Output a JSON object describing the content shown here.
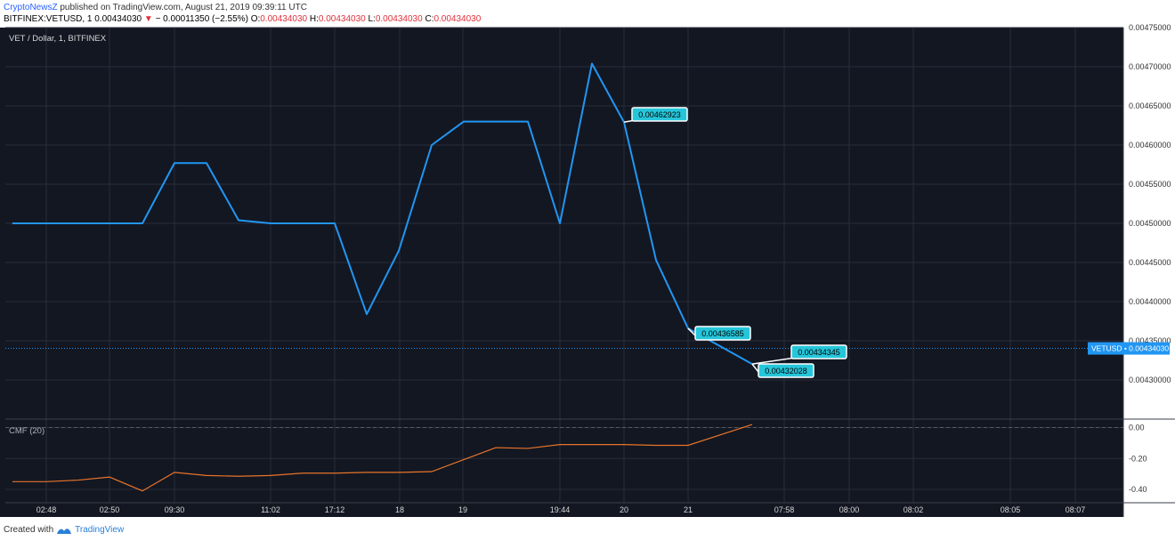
{
  "header": {
    "author": "CryptoNewsZ",
    "published": "published on TradingView.com, August 21, 2019 09:39:11 UTC",
    "symbol": "BITFINEX:VETUSD, 1",
    "price": "0.00434030",
    "change": "− 0.00011350 (−2.55%)",
    "o_label": "O:",
    "o_value": "0.00434030",
    "h_label": "H:",
    "h_value": "0.00434030",
    "l_label": "L:",
    "l_value": "0.00434030",
    "c_label": "C:",
    "c_value": "0.00434030"
  },
  "footer": {
    "created_with": "Created with",
    "brand": "TradingView"
  },
  "colors": {
    "background": "#131722",
    "price_line": "#2196f3",
    "cmf_line": "#e8742a",
    "label_box": "#26c6da",
    "price_badge": "#2196f3",
    "grid": "#2a2e39"
  },
  "chart_data": [
    {
      "type": "line",
      "title": "VET / Dollar, 1, BITFINEX",
      "ylim": [
        0.00425,
        0.00475
      ],
      "y_ticks": [
        "0.00430000",
        "0.00435000",
        "0.00440000",
        "0.00445000",
        "0.00450000",
        "0.00455000",
        "0.00460000",
        "0.00465000",
        "0.00470000",
        "0.00475000"
      ],
      "x_ticks": [
        "02:48",
        "02:50",
        "09:30",
        "11:02",
        "17:12",
        "18",
        "19",
        "19:44",
        "20",
        "21",
        "07:58",
        "08:00",
        "08:02",
        "08:05",
        "08:07"
      ],
      "series": [
        {
          "values": [
            {
              "x": "start",
              "y": 0.0045
            },
            {
              "x": "02:50",
              "y": 0.0045
            },
            {
              "x": "09:30",
              "y": 0.004577
            },
            {
              "x": "09:30+",
              "y": 0.004577
            },
            {
              "x": "11:02-",
              "y": 0.004504
            },
            {
              "x": "11:02",
              "y": 0.0045
            },
            {
              "x": "17:12",
              "y": 0.0045
            },
            {
              "x": "17:12+",
              "y": 0.004384
            },
            {
              "x": "18-",
              "y": 0.004465
            },
            {
              "x": "18",
              "y": 0.0046
            },
            {
              "x": "19",
              "y": 0.00463
            },
            {
              "x": "19+",
              "y": 0.00463
            },
            {
              "x": "19:44",
              "y": 0.0045
            },
            {
              "x": "19:44+",
              "y": 0.004704
            },
            {
              "x": "20",
              "y": 0.00462923
            },
            {
              "x": "20+",
              "y": 0.004453
            },
            {
              "x": "21",
              "y": 0.00436585
            },
            {
              "x": "21+",
              "y": 0.00432028
            }
          ]
        }
      ],
      "annotations": [
        {
          "text": "0.00462923",
          "value": 0.00462923
        },
        {
          "text": "0.00436585",
          "value": 0.00436585
        },
        {
          "text": "0.00434345",
          "value": 0.00434345
        },
        {
          "text": "0.00432028",
          "value": 0.00432028
        }
      ],
      "current_price": {
        "symbol": "VETUSD",
        "value": "0.00434030",
        "y": 0.0043403
      }
    },
    {
      "type": "line",
      "title": "CMF (20)",
      "ylim": [
        -0.45,
        0.05
      ],
      "y_ticks": [
        "0.00",
        "-0.20",
        "-0.40"
      ],
      "series": [
        {
          "values": [
            -0.35,
            -0.35,
            -0.34,
            -0.32,
            -0.41,
            -0.29,
            -0.31,
            -0.315,
            -0.31,
            -0.295,
            -0.295,
            -0.29,
            -0.29,
            -0.285,
            -0.13,
            -0.135,
            -0.11,
            -0.11,
            -0.11,
            -0.115,
            -0.115,
            0.02
          ]
        }
      ]
    }
  ]
}
